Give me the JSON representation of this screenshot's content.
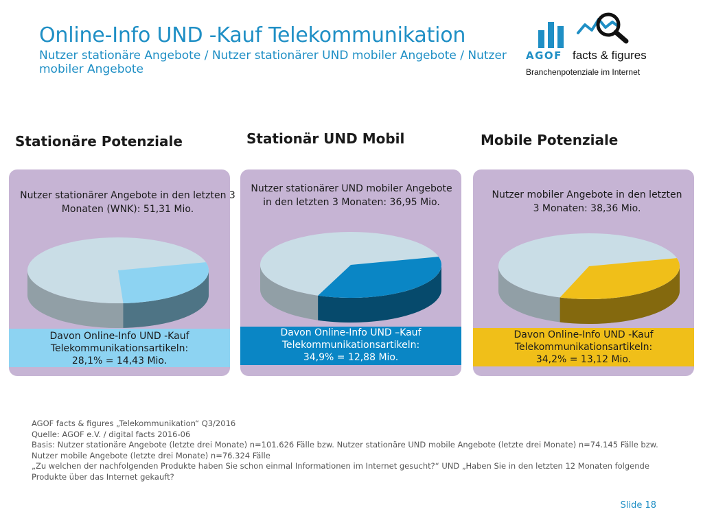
{
  "header": {
    "title": "Online-Info UND -Kauf Telekommunikation",
    "subtitle": "Nutzer stationäre Angebote / Nutzer stationärer UND mobiler Angebote / Nutzer mobiler Angebote"
  },
  "logo": {
    "brand": "AGOF",
    "product": "facts & figures",
    "tagline": "Branchenpotenziale im Internet",
    "icon": "bar-chart-magnifier-icon"
  },
  "colors": {
    "accent": "#1f8fc5",
    "panel": "#c6b4d4",
    "pie_rest": "#c9dde6",
    "stationaer": "#8dd3f2",
    "stationaer_und_mobil": "#0a86c5",
    "mobil": "#f0bf19"
  },
  "columns": [
    {
      "heading": "Stationäre Potenziale",
      "description": "Nutzer stationärer Angebote in den letzten 3 Monaten (WNK): 51,31 Mio.",
      "band_line1": "Davon Online-Info UND -Kauf",
      "band_line2": "Telekommunikationsartikeln:",
      "band_line3": "28,1% = 14,43 Mio."
    },
    {
      "heading": "Stationär UND Mobil",
      "description": "Nutzer stationärer UND mobiler Angebote in den letzten 3 Monaten: 36,95 Mio.",
      "band_line1": "Davon Online-Info UND –Kauf",
      "band_line2": "Telekommunikationsartikeln:",
      "band_line3": "34,9% = 12,88 Mio."
    },
    {
      "heading": "Mobile Potenziale",
      "description": "Nutzer mobiler Angebote in den letzten 3 Monaten: 38,36 Mio.",
      "band_line1": "Davon Online-Info UND -Kauf",
      "band_line2": "Telekommunikationsartikeln:",
      "band_line3": "34,2% = 13,12 Mio."
    }
  ],
  "chart_data": [
    {
      "type": "pie",
      "title": "Stationäre Potenziale",
      "slices": [
        {
          "label": "Davon Online-Info UND -Kauf Telekommunikationsartikeln",
          "value": 28.1
        },
        {
          "label": "",
          "value": 71.9
        }
      ],
      "total": 51.31,
      "unit": "Mio.",
      "subset": 14.43
    },
    {
      "type": "pie",
      "title": "Stationär UND Mobil",
      "slices": [
        {
          "label": "Davon Online-Info UND –Kauf Telekommunikationsartikeln",
          "value": 34.9
        },
        {
          "label": "",
          "value": 65.1
        }
      ],
      "total": 36.95,
      "unit": "Mio.",
      "subset": 12.88
    },
    {
      "type": "pie",
      "title": "Mobile Potenziale",
      "slices": [
        {
          "label": "Davon Online-Info UND -Kauf Telekommunikationsartikeln",
          "value": 34.2
        },
        {
          "label": "",
          "value": 65.8
        }
      ],
      "total": 38.36,
      "unit": "Mio.",
      "subset": 13.12
    }
  ],
  "footer": {
    "source_line1": "AGOF facts & figures „Telekommunikation“ Q3/2016",
    "source_line2": "Quelle: AGOF e.V. / digital facts 2016-06",
    "source_line3": "Basis: Nutzer stationäre Angebote (letzte drei Monate) n=101.626 Fälle bzw. Nutzer stationäre UND mobile Angebote (letzte drei Monate) n=74.145 Fälle bzw. Nutzer mobile Angebote (letzte drei Monate) n=76.324 Fälle",
    "source_line4": "„Zu welchen der nachfolgenden Produkte haben Sie schon einmal Informationen im Internet gesucht?“ UND „Haben Sie in den letzten 12 Monaten folgende Produkte über das Internet gekauft?",
    "slide_label": "Slide 18"
  }
}
